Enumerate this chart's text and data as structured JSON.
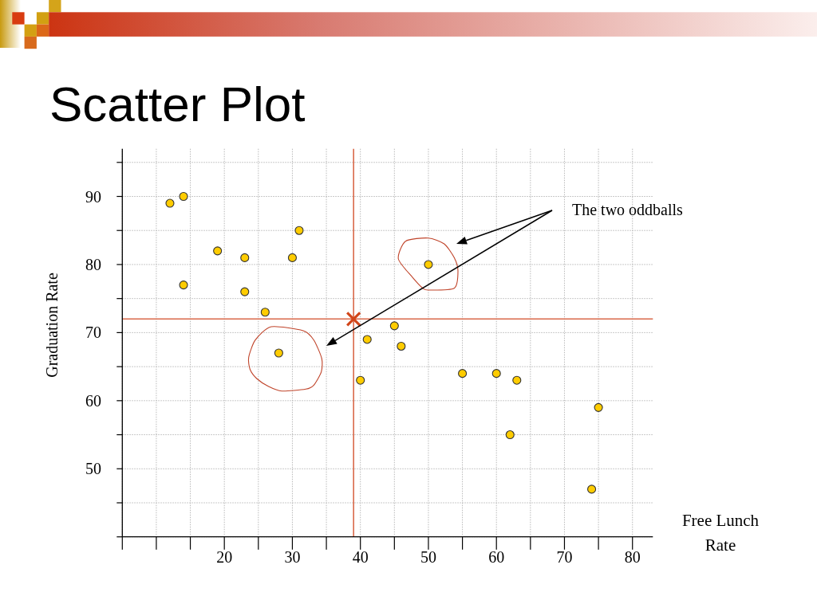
{
  "chart_data": {
    "type": "scatter",
    "title": "Scatter Plot",
    "xlabel": "Free Lunch Rate",
    "ylabel": "Graduation Rate",
    "annotations": [
      "The two oddballs"
    ],
    "xlim": [
      5,
      83
    ],
    "ylim": [
      40,
      97
    ],
    "xticks": [
      {
        "value": 5,
        "label": null
      },
      {
        "value": 10,
        "label": null
      },
      {
        "value": 15,
        "label": null
      },
      20,
      {
        "value": 25,
        "label": null
      },
      30,
      {
        "value": 35,
        "label": null
      },
      40,
      {
        "value": 45,
        "label": null
      },
      50,
      {
        "value": 55,
        "label": null
      },
      60,
      {
        "value": 65,
        "label": null
      },
      70,
      {
        "value": 75,
        "label": null
      },
      80
    ],
    "yticks": [
      {
        "value": 40,
        "label": null
      },
      {
        "value": 45,
        "label": null
      },
      50,
      {
        "value": 55,
        "label": null
      },
      60,
      {
        "value": 65,
        "label": null
      },
      70,
      {
        "value": 75,
        "label": null
      },
      80,
      {
        "value": 85,
        "label": null
      },
      90,
      {
        "value": 95,
        "label": null
      }
    ],
    "grid": true,
    "marker": "circle",
    "series": [
      {
        "color": "#ffcc00",
        "x": [
          12,
          14,
          14,
          19,
          23,
          23,
          26,
          28,
          30,
          31,
          40,
          41,
          45,
          46,
          50,
          55,
          60,
          62,
          63,
          74,
          75
        ],
        "values": [
          89,
          90,
          77,
          82,
          81,
          76,
          73,
          67,
          81,
          85,
          63,
          69,
          71,
          68,
          80,
          64,
          64,
          55,
          63,
          47,
          59
        ]
      },
      {
        "color": "#d2461a",
        "marker": "cross",
        "x": [
          39
        ],
        "values": [
          72
        ]
      }
    ],
    "ref_lines": [
      {
        "axis": "x",
        "value": 39,
        "color": "#d9694a"
      },
      {
        "axis": "y",
        "value": 72,
        "color": "#d9694a"
      }
    ]
  }
}
